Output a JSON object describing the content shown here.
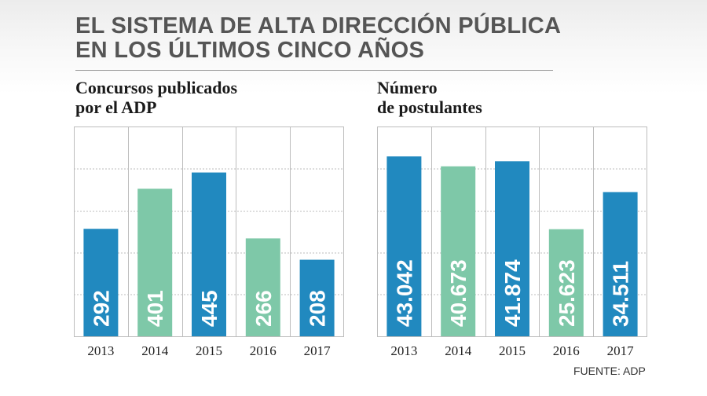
{
  "header": {
    "title_line1": "EL SISTEMA DE ALTA DIRECCIÓN PÚBLICA",
    "title_line2": "EN LOS ÚLTIMOS CINCO AÑOS"
  },
  "source": "FUENTE: ADP",
  "colors": {
    "blue": "#2189bf",
    "green": "#7ec8a8",
    "grid": "#bdbdbd",
    "title": "#555555"
  },
  "chart_data": [
    {
      "type": "bar",
      "title_line1": "Concursos publicados",
      "title_line2": "por el ADP",
      "categories": [
        "2013",
        "2014",
        "2015",
        "2016",
        "2017"
      ],
      "values": [
        292,
        401,
        445,
        266,
        208
      ],
      "value_labels": [
        "292",
        "401",
        "445",
        "266",
        "208"
      ],
      "bar_colors": [
        "#2189bf",
        "#7ec8a8",
        "#2189bf",
        "#7ec8a8",
        "#2189bf"
      ],
      "ylim": [
        0,
        570
      ],
      "grid": true
    },
    {
      "type": "bar",
      "title_line1": "Número",
      "title_line2": "de postulantes",
      "categories": [
        "2013",
        "2014",
        "2015",
        "2016",
        "2017"
      ],
      "values": [
        43042,
        40673,
        41874,
        25623,
        34511
      ],
      "value_labels": [
        "43.042",
        "40.673",
        "41.874",
        "25.623",
        "34.511"
      ],
      "bar_colors": [
        "#2189bf",
        "#7ec8a8",
        "#2189bf",
        "#7ec8a8",
        "#2189bf"
      ],
      "ylim": [
        0,
        50200
      ],
      "grid": true
    }
  ]
}
